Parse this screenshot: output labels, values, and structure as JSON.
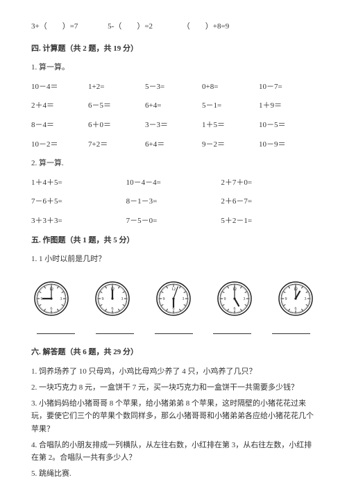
{
  "fill": {
    "a": "3+（　　）=7",
    "b": "5-（　　）=2",
    "c": "（　　）+8=9"
  },
  "s4": {
    "title": "四. 计算题（共 2 题，共 19 分）",
    "q1": "1. 算一算。",
    "g1": {
      "r1": [
        "10－4＝",
        "1+2=",
        "5－3=",
        "0+8=",
        "10－7="
      ],
      "r2": [
        "2＋4＝",
        "6－5＝",
        "6+4=",
        "5－1=",
        "1＋9＝"
      ],
      "r3": [
        "8－4＝",
        "6＋0＝",
        "3－3＝",
        "1＋5＝",
        "10－5＝"
      ],
      "r4": [
        "10－2＝",
        "7+2＝",
        "6+4＝",
        "9－2＝",
        "10－9＝"
      ]
    },
    "q2": "2. 算一算.",
    "g2": {
      "r1": [
        "1＋4＋5=",
        "10－4－4=",
        "2＋7＋0="
      ],
      "r2": [
        "7－6＋5=",
        "8－1－3=",
        "2＋6－7="
      ],
      "r3": [
        "3＋3＋3=",
        "7－5－0=",
        "5＋2－1="
      ]
    }
  },
  "s5": {
    "title": "五. 作图题（共 1 题，共 5 分）",
    "q1": "1. 1 小时以前是几时？",
    "clocks": [
      {
        "hour_angle": 270,
        "minute_angle": 0
      },
      {
        "hour_angle": 0,
        "minute_angle": 0
      },
      {
        "hour_angle": 180,
        "minute_angle": 20
      },
      {
        "hour_angle": 150,
        "minute_angle": 0
      },
      {
        "hour_angle": 30,
        "minute_angle": 0
      }
    ],
    "clock_style": {
      "stroke": "#222222",
      "face": "#ffffff",
      "radius": 24,
      "num_fontsize": 6,
      "hour_len": 12,
      "minute_len": 18,
      "hour_w": 2.2,
      "minute_w": 1.2
    }
  },
  "s6": {
    "title": "六. 解答题（共 6 题，共 29 分）",
    "p1": "1. 饲养场养了 10 只母鸡，小鸡比母鸡少养了 4 只，小鸡养了几只？",
    "p2": "2. 一块巧克力 8 元，一盒饼干 7 元，买一块巧克力和一盒饼干一共需要多少钱？",
    "p3": "3. 小猪妈妈给小猪哥哥 8 个苹果，给小猪弟弟 8 个苹果，这时隔壁的小猪花花过来玩，要使它们三个的苹果个数同样多，那么小猪哥哥和小猪弟弟各应给小猪花花几个苹果？",
    "p4": "4. 合唱队的小朋友排成一列横队，从左往右数，小红排在第 3，从右往左数，小红排在第 2。合唱队一共有多少人？",
    "p5": "5. 跳绳比赛."
  }
}
